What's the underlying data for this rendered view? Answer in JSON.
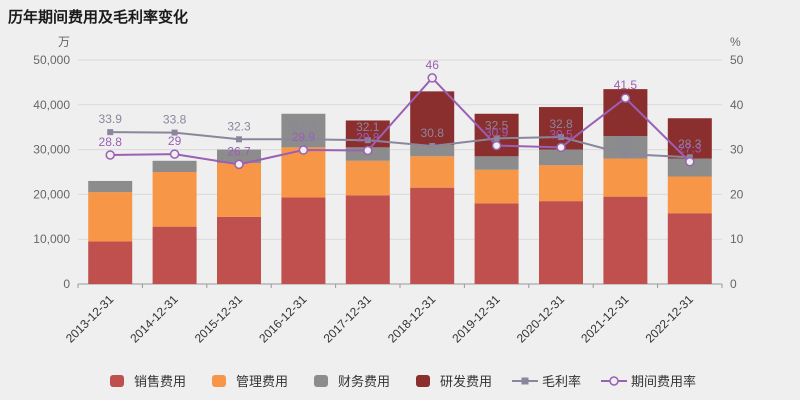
{
  "title": "历年期间费用及毛利率变化",
  "left_axis": {
    "unit": "万",
    "min": 0,
    "max": 50000,
    "step": 10000
  },
  "right_axis": {
    "unit": "%",
    "min": 0,
    "max": 50,
    "step": 10
  },
  "colors": {
    "background": "#efefef",
    "grid": "#d9d9d9",
    "axis": "#999999",
    "tick_text": "#666666",
    "category_text": "#333333"
  },
  "chart_data": {
    "type": "bar",
    "title": "历年期间费用及毛利率变化",
    "xlabel": "",
    "ylabel_left": "万",
    "ylabel_right": "%",
    "ylim_left": [
      0,
      50000
    ],
    "ylim_right": [
      0,
      50
    ],
    "legend_position": "bottom",
    "grid": true,
    "categories": [
      "2013-12-31",
      "2014-12-31",
      "2015-12-31",
      "2016-12-31",
      "2017-12-31",
      "2018-12-31",
      "2019-12-31",
      "2020-12-31",
      "2021-12-31",
      "2022-12-31"
    ],
    "bar_series": [
      {
        "name": "销售费用",
        "color": "#c0504d",
        "values": [
          9500,
          12800,
          15000,
          19300,
          19800,
          21500,
          18000,
          18500,
          19500,
          15800
        ]
      },
      {
        "name": "管理费用",
        "color": "#f79646",
        "values": [
          11000,
          12200,
          12000,
          11200,
          7700,
          7000,
          7500,
          8000,
          8500,
          8200
        ]
      },
      {
        "name": "财务费用",
        "color": "#8c8c8c",
        "values": [
          2500,
          2500,
          3000,
          7500,
          3000,
          2500,
          3000,
          3500,
          5000,
          4000
        ]
      },
      {
        "name": "研发费用",
        "color": "#8b2e2e",
        "values": [
          0,
          0,
          0,
          0,
          6000,
          12000,
          9500,
          9500,
          10500,
          9000
        ]
      }
    ],
    "line_series": [
      {
        "name": "毛利率",
        "color": "#8a879c",
        "marker": "square",
        "values": [
          33.9,
          33.8,
          32.3,
          32.3,
          32.1,
          30.8,
          32.5,
          32.8,
          29,
          28.3
        ]
      },
      {
        "name": "期间费用率",
        "color": "#9a60b4",
        "marker": "circle",
        "values": [
          28.8,
          29,
          26.7,
          29.9,
          29.8,
          46,
          30.9,
          30.5,
          41.5,
          27.3
        ]
      }
    ]
  }
}
